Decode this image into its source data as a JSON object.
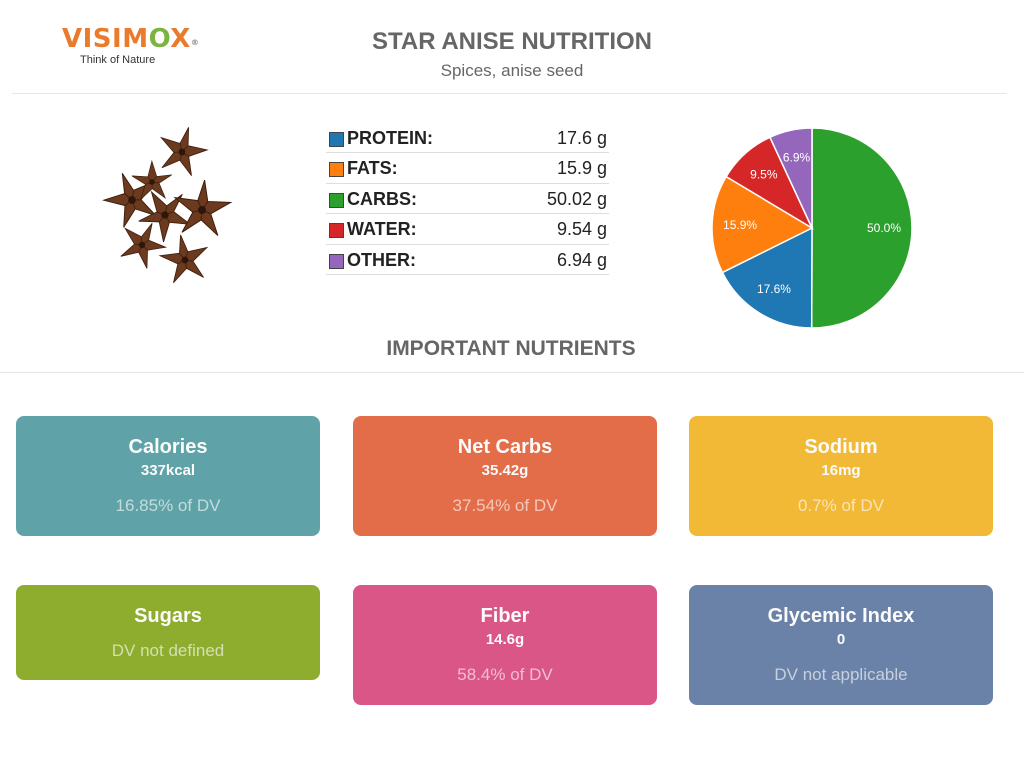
{
  "logo": {
    "brand_prefix": "VISIM",
    "brand_leaf": "O",
    "brand_suffix": "X",
    "mark": "®",
    "tagline": "Think of Nature"
  },
  "header": {
    "title": "STAR ANISE NUTRITION",
    "subtitle": "Spices, anise seed"
  },
  "illustration": {
    "icon": "star-anise-icon"
  },
  "colors": {
    "protein": "#1f77b4",
    "fats": "#ff7f0e",
    "carbs": "#2ca02c",
    "water": "#d62728",
    "other": "#9467bd",
    "calories_card": "#5fa3a8",
    "net_carbs_card": "#e36d48",
    "sodium_card": "#f2b936",
    "sugars_card": "#8ead2e",
    "fiber_card": "#d95686",
    "glycemic_card": "#6b82a8"
  },
  "macros": [
    {
      "label": "PROTEIN:",
      "value": "17.6 g",
      "color": "#1f77b4"
    },
    {
      "label": "FATS:",
      "value": "15.9 g",
      "color": "#ff7f0e"
    },
    {
      "label": "CARBS:",
      "value": "50.02 g",
      "color": "#2ca02c"
    },
    {
      "label": "WATER:",
      "value": "9.54 g",
      "color": "#d62728"
    },
    {
      "label": "OTHER:",
      "value": "6.94 g",
      "color": "#9467bd"
    }
  ],
  "chart_data": {
    "type": "pie",
    "categories": [
      "Carbs",
      "Protein",
      "Fats",
      "Water",
      "Other"
    ],
    "values": [
      50.0,
      17.6,
      15.9,
      9.5,
      6.9
    ],
    "labels": [
      "50.0%",
      "17.6%",
      "15.9%",
      "9.5%",
      "6.9%"
    ],
    "colors": [
      "#2ca02c",
      "#1f77b4",
      "#ff7f0e",
      "#d62728",
      "#9467bd"
    ],
    "start": "12 o'clock",
    "direction": "clockwise"
  },
  "nutrients_section": {
    "title": "IMPORTANT NUTRIENTS"
  },
  "nutrients": {
    "calories": {
      "name": "Calories",
      "amount": "337kcal",
      "dv": "16.85% of DV"
    },
    "net_carbs": {
      "name": "Net Carbs",
      "amount": "35.42g",
      "dv": "37.54% of DV"
    },
    "sodium": {
      "name": "Sodium",
      "amount": "16mg",
      "dv": "0.7% of DV"
    },
    "sugars": {
      "name": "Sugars",
      "dv": "DV not defined"
    },
    "fiber": {
      "name": "Fiber",
      "amount": "14.6g",
      "dv": "58.4% of DV"
    },
    "glycemic": {
      "name": "Glycemic Index",
      "amount": "0",
      "dv": "DV not applicable"
    }
  }
}
